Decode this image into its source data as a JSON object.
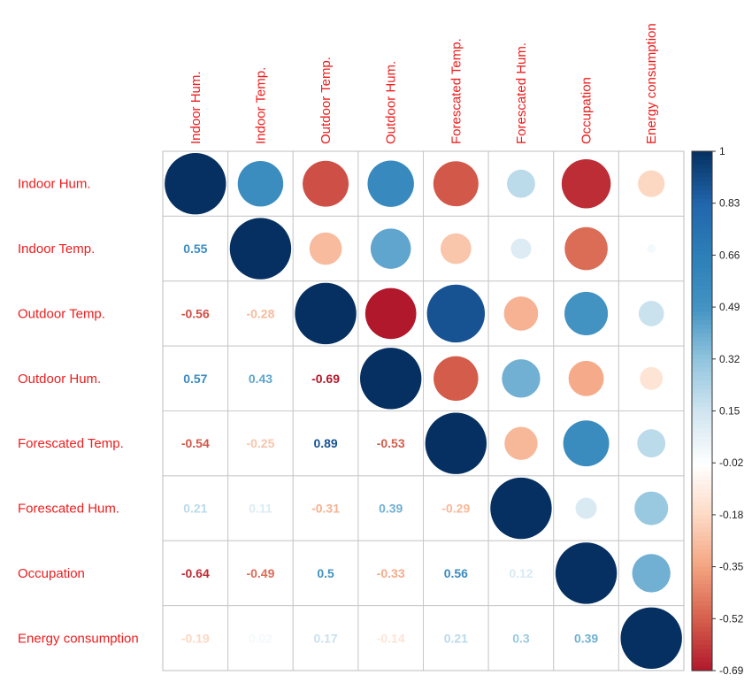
{
  "chart_data": {
    "type": "heatmap",
    "variables": [
      "Indoor Hum.",
      "Indoor Temp.",
      "Outdoor Temp.",
      "Outdoor Hum.",
      "Forescated Temp.",
      "Forescated Hum.",
      "Occupation",
      "Energy consumption"
    ],
    "matrix": [
      [
        1,
        0.55,
        -0.56,
        0.57,
        -0.54,
        0.21,
        -0.64,
        -0.19
      ],
      [
        0.55,
        1,
        -0.28,
        0.43,
        -0.25,
        0.11,
        -0.49,
        0.02
      ],
      [
        -0.56,
        -0.28,
        1,
        -0.69,
        0.89,
        -0.31,
        0.5,
        0.17
      ],
      [
        0.57,
        0.43,
        -0.69,
        1,
        -0.53,
        0.39,
        -0.33,
        -0.14
      ],
      [
        -0.54,
        -0.25,
        0.89,
        -0.53,
        1,
        -0.29,
        0.56,
        0.21
      ],
      [
        0.21,
        0.11,
        -0.31,
        0.39,
        -0.29,
        1,
        0.12,
        0.3
      ],
      [
        -0.64,
        -0.49,
        0.5,
        -0.33,
        0.56,
        0.12,
        1,
        0.39
      ],
      [
        -0.19,
        0.02,
        0.17,
        -0.14,
        0.21,
        0.3,
        0.39,
        1
      ]
    ],
    "lower_labels": [
      [],
      [
        "0.55"
      ],
      [
        "-0.56",
        "-0.28"
      ],
      [
        "0.57",
        "0.43",
        "-0.69"
      ],
      [
        "-0.54",
        "-0.25",
        "0.89",
        "-0.53"
      ],
      [
        "0.21",
        "0.11",
        "-0.31",
        "0.39",
        "-0.29"
      ],
      [
        "-0.64",
        "-0.49",
        "0.5",
        "-0.33",
        "0.56",
        "0.12"
      ],
      [
        "-0.19",
        "0.02",
        "0.17",
        "-0.14",
        "0.21",
        "0.3",
        "0.39"
      ]
    ],
    "upper_display": "circle",
    "lower_display": "number",
    "colorbar": {
      "min": -0.69,
      "max": 1,
      "ticks": [
        "1",
        "0.83",
        "0.66",
        "0.49",
        "0.32",
        "0.15",
        "-0.02",
        "-0.18",
        "-0.35",
        "-0.52",
        "-0.69"
      ],
      "stops": [
        {
          "value": -0.69,
          "color": "#b2182b"
        },
        {
          "value": -0.52,
          "color": "#d6604d"
        },
        {
          "value": -0.35,
          "color": "#f4a582"
        },
        {
          "value": -0.18,
          "color": "#fddbc7"
        },
        {
          "value": -0.02,
          "color": "#ffffff"
        },
        {
          "value": 0.15,
          "color": "#d1e5f0"
        },
        {
          "value": 0.32,
          "color": "#92c5de"
        },
        {
          "value": 0.49,
          "color": "#4393c3"
        },
        {
          "value": 0.66,
          "color": "#2c7fb8"
        },
        {
          "value": 0.83,
          "color": "#2166ac"
        },
        {
          "value": 1,
          "color": "#053061"
        }
      ]
    },
    "label_color": "#ee1c1c",
    "grid": true
  }
}
